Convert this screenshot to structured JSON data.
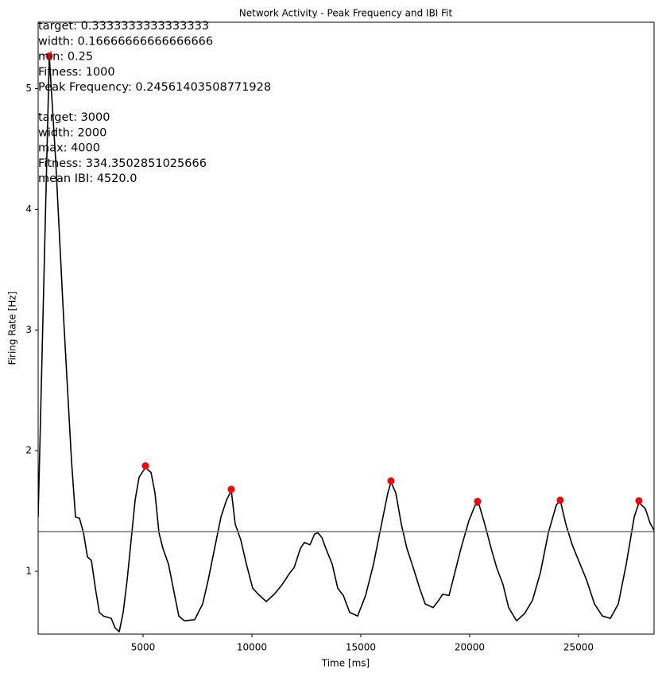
{
  "chart_data": {
    "type": "line",
    "title": "Network Activity - Peak Frequency and IBI Fit",
    "xlabel": "Time [ms]",
    "ylabel": "Firing Rate [Hz]",
    "annotations": [
      [
        "target: 0.3333333333333333",
        "width: 0.16666666666666666",
        "min: 0.25",
        "Fitness: 1000",
        "Peak Frequency: 0.24561403508771928"
      ],
      [
        "target: 3000",
        "width: 2000",
        "max: 4000",
        "Fitness: 334.3502851025666",
        "mean IBI: 4520.0"
      ]
    ],
    "xlim": [
      182,
      28470
    ],
    "ylim": [
      0.48,
      5.55
    ],
    "xticks": [
      5000,
      10000,
      15000,
      20000,
      25000
    ],
    "yticks": [
      1,
      2,
      3,
      4,
      5
    ],
    "color": "#000000",
    "x": [
      182,
      694,
      986,
      1351,
      1716,
      1898,
      2081,
      2263,
      2446,
      2628,
      2811,
      2993,
      3176,
      3541,
      3723,
      3906,
      4088,
      4271,
      4453,
      4636,
      4818,
      5110,
      5366,
      5548,
      5731,
      5913,
      6169,
      6388,
      6643,
      6899,
      7373,
      7738,
      7994,
      8286,
      8578,
      8833,
      9052,
      9235,
      9490,
      9746,
      10038,
      10293,
      10658,
      11023,
      11388,
      11753,
      11936,
      12228,
      12410,
      12666,
      12885,
      13031,
      13213,
      13396,
      13688,
      13943,
      14199,
      14491,
      14856,
      15221,
      15586,
      15951,
      16243,
      16389,
      16608,
      16863,
      17119,
      17411,
      17703,
      17958,
      18323,
      18579,
      18761,
      19053,
      19236,
      19601,
      19966,
      20258,
      20440,
      20696,
      20988,
      21243,
      21535,
      21791,
      22156,
      22521,
      22886,
      23251,
      23616,
      23981,
      24163,
      24419,
      24711,
      25003,
      25368,
      25733,
      26098,
      26463,
      26828,
      27193,
      27558,
      27777,
      28069,
      28288,
      28470
    ],
    "values": [
      1.45,
      5.27,
      4.41,
      3.1,
      1.91,
      1.45,
      1.44,
      1.32,
      1.12,
      1.09,
      0.86,
      0.66,
      0.63,
      0.61,
      0.53,
      0.5,
      0.66,
      0.93,
      1.26,
      1.59,
      1.78,
      1.86,
      1.82,
      1.65,
      1.32,
      1.19,
      1.06,
      0.86,
      0.63,
      0.59,
      0.6,
      0.73,
      0.93,
      1.19,
      1.45,
      1.59,
      1.67,
      1.39,
      1.26,
      1.06,
      0.86,
      0.81,
      0.75,
      0.81,
      0.89,
      0.99,
      1.03,
      1.19,
      1.24,
      1.22,
      1.31,
      1.32,
      1.28,
      1.19,
      1.06,
      0.86,
      0.8,
      0.66,
      0.63,
      0.8,
      1.06,
      1.39,
      1.65,
      1.74,
      1.65,
      1.39,
      1.19,
      1.03,
      0.86,
      0.73,
      0.7,
      0.76,
      0.81,
      0.8,
      0.93,
      1.19,
      1.42,
      1.55,
      1.55,
      1.39,
      1.19,
      1.03,
      0.89,
      0.7,
      0.59,
      0.65,
      0.76,
      0.99,
      1.32,
      1.55,
      1.59,
      1.39,
      1.22,
      1.09,
      0.93,
      0.73,
      0.63,
      0.61,
      0.73,
      1.06,
      1.45,
      1.57,
      1.52,
      1.4,
      1.34
    ],
    "peaks": {
      "color": "#ff0000",
      "x": [
        694,
        5109,
        9051,
        16387,
        20365,
        24160,
        27773
      ],
      "values": [
        5.27,
        1.875,
        1.68,
        1.75,
        1.58,
        1.59,
        1.585
      ]
    },
    "hline": 1.33,
    "hline_color": "#808080"
  }
}
